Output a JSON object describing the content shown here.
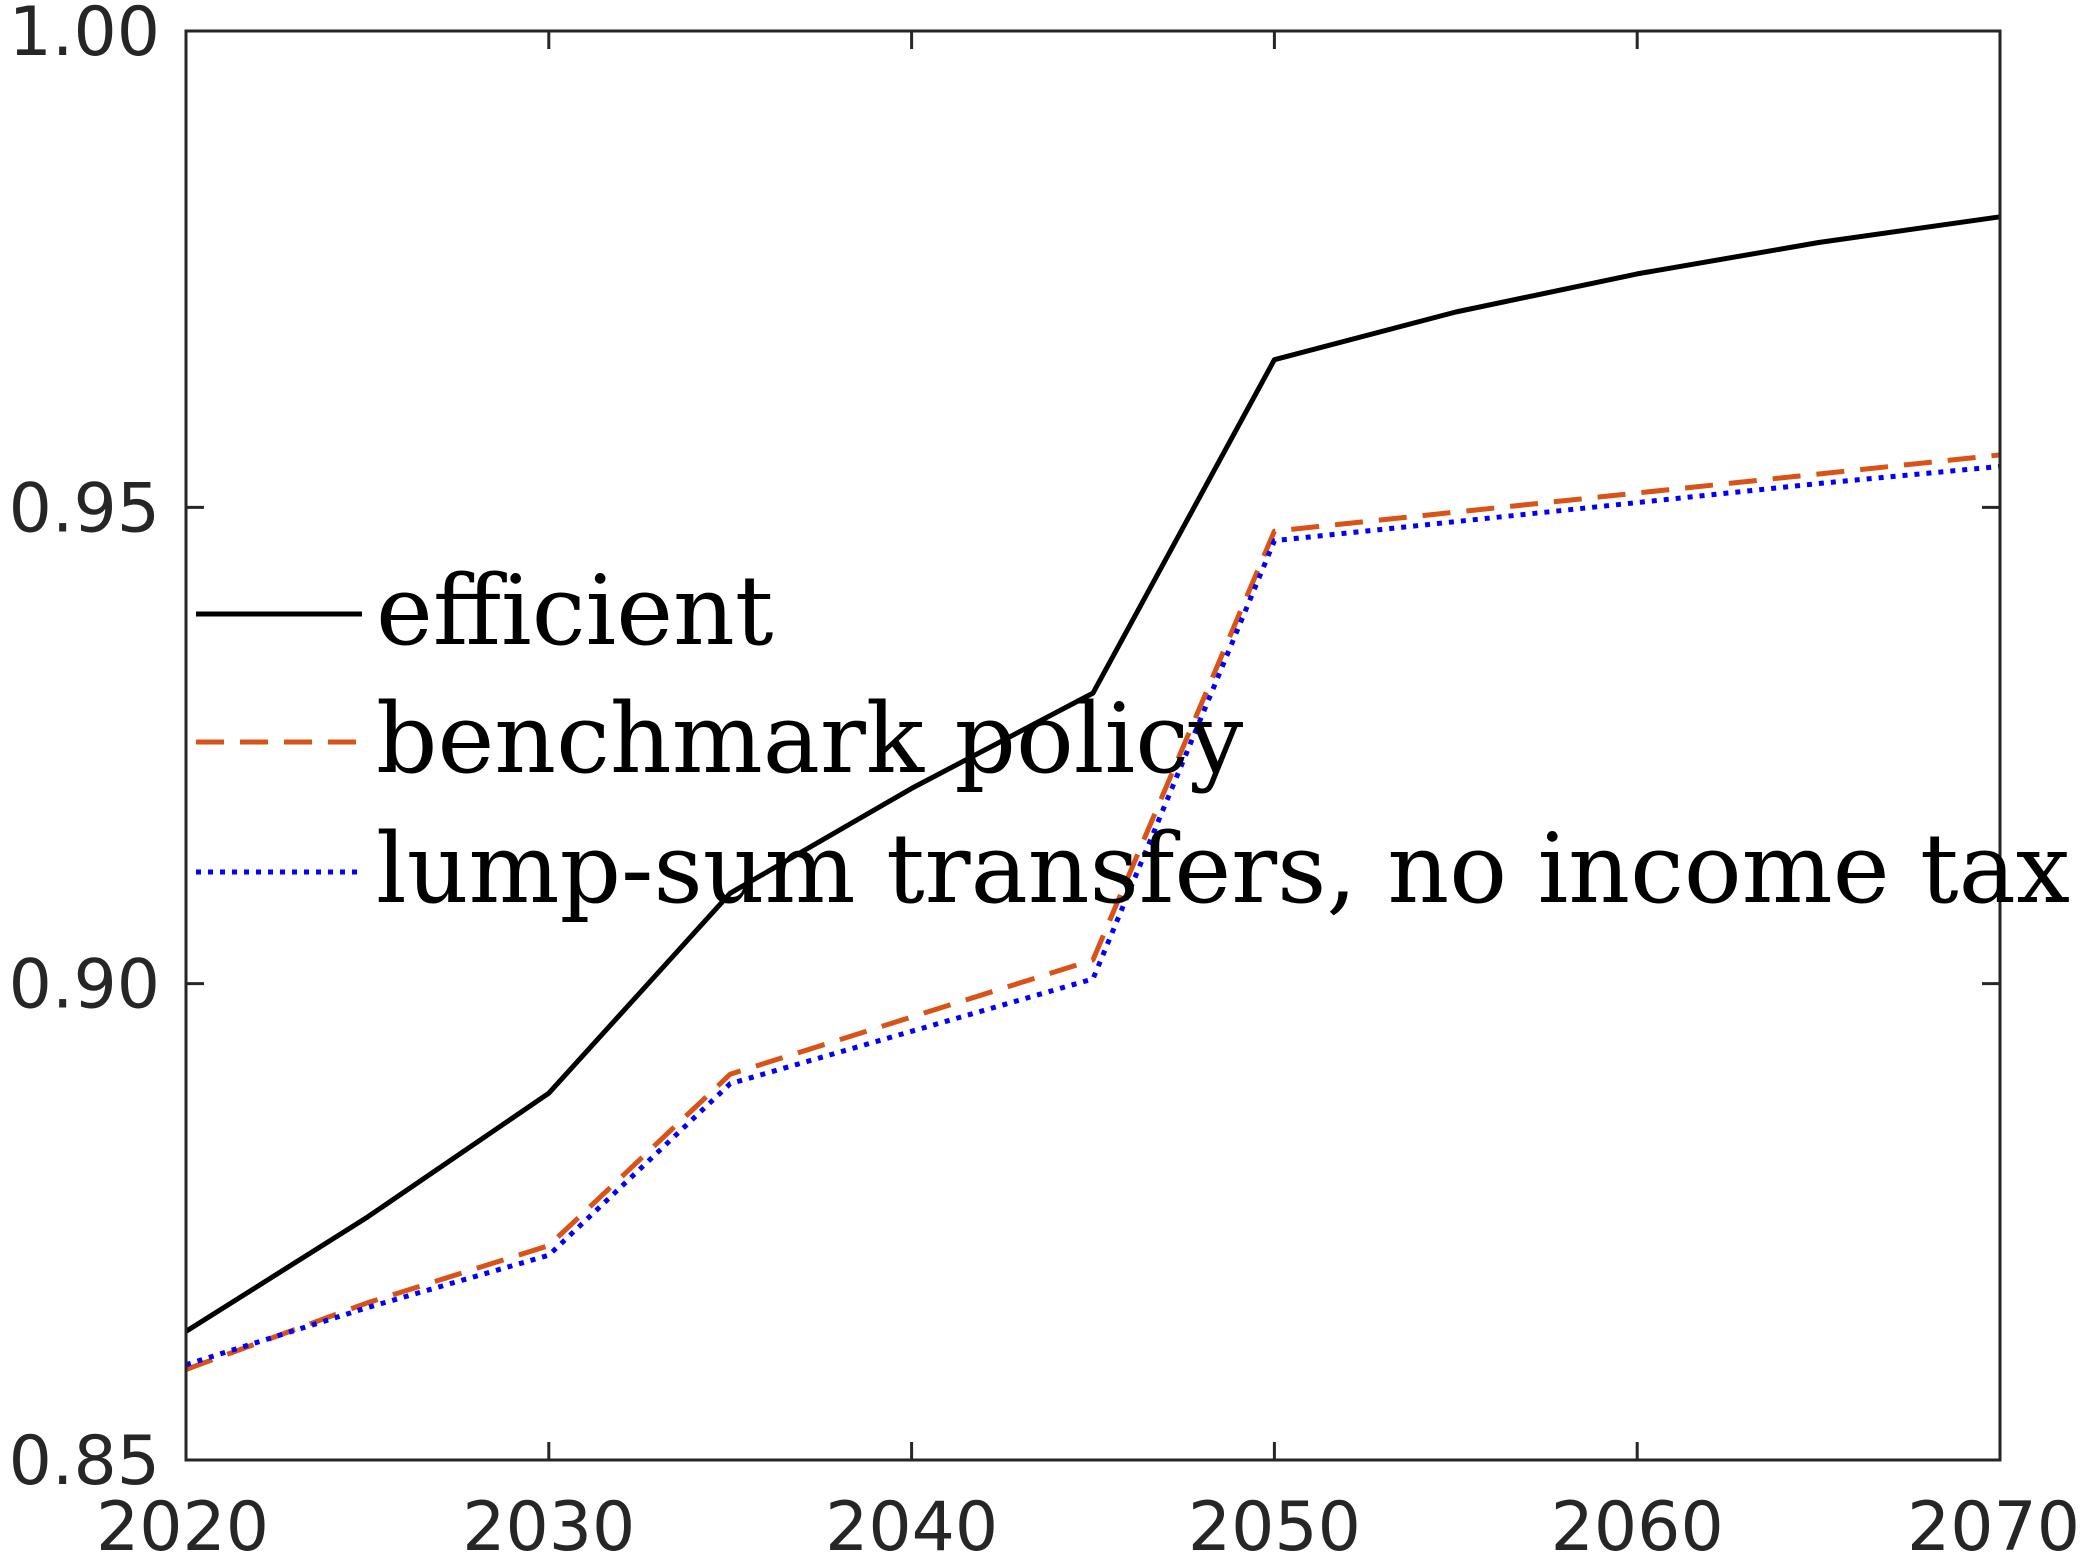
{
  "chart_data": {
    "type": "line",
    "title": "",
    "xlabel": "",
    "ylabel": "",
    "xlim": [
      2020,
      2070
    ],
    "ylim": [
      0.85,
      1.0
    ],
    "xticks": [
      "2020",
      "2030",
      "2040",
      "2050",
      "2060",
      "2070"
    ],
    "yticks": [
      "0.85",
      "0.90",
      "0.95",
      "1.00"
    ],
    "grid": false,
    "legend_position": "center-left",
    "series": [
      {
        "name": "efficient",
        "color": "#000000",
        "style": "solid",
        "x": [
          2020,
          2025,
          2030,
          2035,
          2040,
          2045,
          2050,
          2055,
          2060,
          2065,
          2070
        ],
        "y": [
          0.8635,
          0.8755,
          0.8885,
          0.9095,
          0.9205,
          0.9305,
          0.9655,
          0.9705,
          0.9745,
          0.9778,
          0.9805
        ]
      },
      {
        "name": "benchmark policy",
        "color": "#D95319",
        "style": "dashed",
        "x": [
          2020,
          2025,
          2030,
          2035,
          2040,
          2045,
          2050,
          2055,
          2060,
          2065,
          2070
        ],
        "y": [
          0.8595,
          0.8665,
          0.8725,
          0.8905,
          0.8965,
          0.9025,
          0.9475,
          0.9495,
          0.9515,
          0.9535,
          0.9555
        ]
      },
      {
        "name": "lump-sum transfers, no income tax",
        "color": "#0000FF",
        "style": "dotted",
        "x": [
          2020,
          2025,
          2030,
          2035,
          2040,
          2045,
          2050,
          2055,
          2060,
          2065,
          2070
        ],
        "y": [
          0.86,
          0.866,
          0.8715,
          0.8895,
          0.895,
          0.9005,
          0.9465,
          0.9485,
          0.9505,
          0.9525,
          0.9543
        ]
      }
    ]
  }
}
